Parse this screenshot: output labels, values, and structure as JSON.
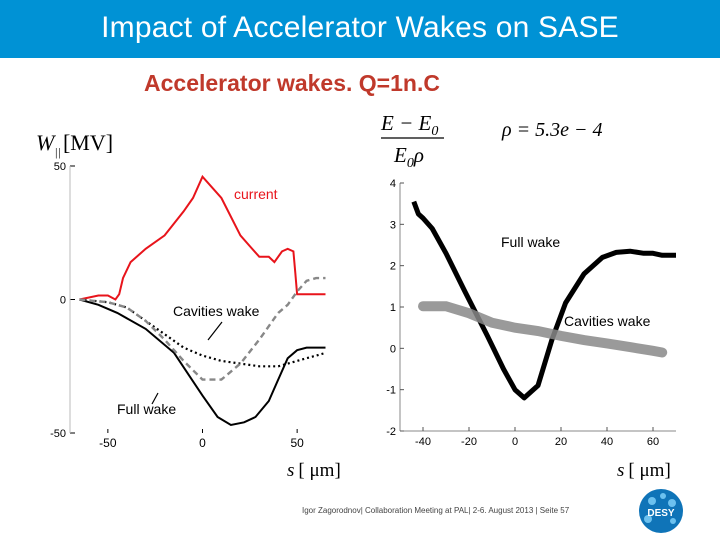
{
  "slide": {
    "title": "Impact of Accelerator Wakes on SASE",
    "subtitle": "Accelerator wakes. Q=1n.C",
    "footer": "Igor Zagorodnov| Collaboration Meeting at PAL| 2-6. August 2013 | Seite 57",
    "logo_text": "DESY",
    "formula_numerator": "E − E",
    "formula_numerator_sub": "0",
    "formula_denominator": "E",
    "formula_denominator_sub": "0",
    "formula_denominator_tail": "ρ",
    "rho_equation": "ρ = 5.3e − 4"
  },
  "colors": {
    "title_bar": "#0092d5",
    "subtitle": "#c0392b",
    "current": "#e8141b",
    "full_wake": "#000000",
    "cavities_wake": "#888888"
  },
  "chart_data": [
    {
      "type": "line",
      "ylabel_main": "W",
      "ylabel_sub": "||",
      "ylabel_unit": "[MV]",
      "xlabel_var": "s",
      "xlabel_unit": "[ μm]",
      "xlim": [
        -70,
        70
      ],
      "ylim": [
        -50,
        50
      ],
      "xticks": [
        -50,
        0,
        50
      ],
      "yticks": [
        50,
        0,
        -50
      ],
      "annotations": {
        "current": "current",
        "cavities": "Cavities wake",
        "full": "Full wake"
      },
      "series": [
        {
          "name": "current",
          "style": "solid-red",
          "x": [
            -65,
            -55,
            -50,
            -46,
            -44,
            -42,
            -38,
            -30,
            -20,
            -10,
            -5,
            0,
            10,
            20,
            25,
            30,
            35,
            38,
            42,
            45,
            48,
            49,
            50,
            52,
            55,
            65
          ],
          "y": [
            0,
            1.5,
            1.5,
            0,
            2,
            8,
            14,
            19,
            24,
            33,
            38,
            46,
            38,
            24,
            20,
            16,
            16,
            14,
            18,
            19,
            18,
            10,
            2,
            2,
            2,
            2
          ]
        },
        {
          "name": "full",
          "style": "solid-black",
          "x": [
            -65,
            -55,
            -45,
            -30,
            -15,
            0,
            8,
            15,
            22,
            28,
            35,
            40,
            45,
            50,
            55,
            60,
            65
          ],
          "y": [
            0,
            -2,
            -5,
            -11,
            -20,
            -36,
            -44,
            -47,
            -46,
            -44,
            -38,
            -30,
            -22,
            -19,
            -18,
            -18,
            -18
          ],
          "markers": [
            {
              "x": -25,
              "y": -12
            },
            {
              "x": 5,
              "y": -16
            }
          ]
        },
        {
          "name": "cavities",
          "style": "dotted-black",
          "x": [
            -65,
            -50,
            -40,
            -30,
            -20,
            -10,
            0,
            10,
            20,
            30,
            40,
            45,
            50,
            55,
            60,
            65
          ],
          "y": [
            0,
            -1,
            -3,
            -8,
            -13,
            -18,
            -21,
            -23,
            -24,
            -25,
            -25,
            -24,
            -23,
            -22,
            -21,
            -20
          ]
        },
        {
          "name": "cavities-scaled",
          "style": "dashed-grey",
          "x": [
            -65,
            -50,
            -40,
            -30,
            -20,
            -10,
            0,
            10,
            20,
            30,
            35,
            40,
            45,
            48,
            50,
            55,
            60,
            65
          ],
          "y": [
            0,
            -1,
            -3,
            -8,
            -15,
            -23,
            -30,
            -30,
            -24,
            -15,
            -10,
            -5,
            -2,
            1,
            3,
            7,
            8,
            8
          ]
        }
      ]
    },
    {
      "type": "line",
      "xlabel_var": "s",
      "xlabel_unit": "[ μm]",
      "xlim": [
        -50,
        70
      ],
      "ylim": [
        -2,
        4
      ],
      "xticks": [
        -40,
        -20,
        0,
        20,
        40,
        60
      ],
      "yticks": [
        4,
        3,
        2,
        1,
        0,
        -1,
        -2
      ],
      "annotations": {
        "full": "Full wake",
        "cavities": "Cavities wake"
      },
      "series": [
        {
          "name": "full",
          "style": "thick-black",
          "x": [
            -44,
            -42,
            -40,
            -36,
            -30,
            -22,
            -12,
            -5,
            0,
            4,
            10,
            16,
            22,
            30,
            38,
            44,
            50,
            56,
            60,
            64,
            70
          ],
          "y": [
            3.55,
            3.25,
            3.15,
            2.9,
            2.3,
            1.4,
            0.3,
            -0.5,
            -1,
            -1.2,
            -0.9,
            0.2,
            1.1,
            1.8,
            2.2,
            2.32,
            2.35,
            2.3,
            2.3,
            2.25,
            2.25
          ]
        },
        {
          "name": "cavities",
          "style": "thick-grey",
          "x": [
            -40,
            -30,
            -20,
            -10,
            0,
            10,
            20,
            30,
            40,
            50,
            60,
            64
          ],
          "y": [
            1.02,
            1.02,
            0.85,
            0.62,
            0.5,
            0.42,
            0.3,
            0.2,
            0.12,
            0.03,
            -0.06,
            -0.1
          ]
        }
      ]
    }
  ]
}
